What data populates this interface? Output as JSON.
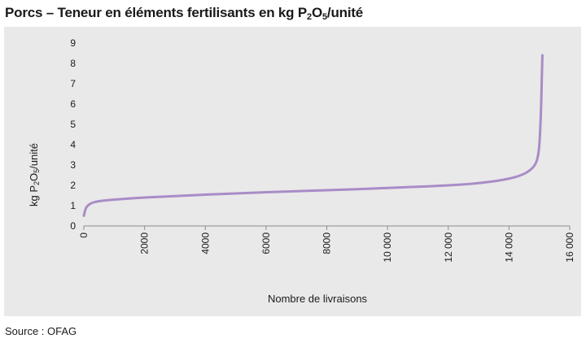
{
  "header": {
    "title_main": "Porcs – Teneur en éléments fertilisants en kg P",
    "title_sub1": "2",
    "title_mid": "O",
    "title_sub2": "5",
    "title_end": "/unité"
  },
  "footer": {
    "source": "Source : OFAG"
  },
  "colors": {
    "panel": "#e9e9e9",
    "line": "#a98cc7",
    "axis": "#8c8c8c"
  },
  "chart_data": {
    "type": "line",
    "title": "Porcs – Teneur en éléments fertilisants en kg P2O5/unité",
    "xlabel": "Nombre de livraisons",
    "ylabel_main": "kg P",
    "ylabel_sub1": "2",
    "ylabel_mid": "O",
    "ylabel_sub2": "5",
    "ylabel_end": "/unité",
    "xlim": [
      0,
      16000
    ],
    "ylim": [
      0,
      9
    ],
    "x_ticks": [
      0,
      2000,
      4000,
      6000,
      8000,
      10000,
      12000,
      14000,
      16000
    ],
    "x_tick_labels": [
      "0",
      "2000",
      "4000",
      "6000",
      "8000",
      "10 000",
      "12 000",
      "14 000",
      "16 000"
    ],
    "y_ticks": [
      0,
      1,
      2,
      3,
      4,
      5,
      6,
      7,
      8,
      9
    ],
    "y_tick_labels": [
      "0",
      "1",
      "2",
      "3",
      "4",
      "5",
      "6",
      "7",
      "8",
      "9"
    ],
    "grid": false,
    "legend": "none",
    "series": [
      {
        "x": [
          0,
          50,
          100,
          200,
          300,
          500,
          800,
          1200,
          2000,
          3000,
          4000,
          5000,
          6000,
          7000,
          8000,
          9000,
          10000,
          11000,
          12000,
          12800,
          13400,
          13900,
          14300,
          14600,
          14800,
          14900,
          14960,
          15000,
          15030,
          15060,
          15080,
          15100
        ],
        "y": [
          0.5,
          0.8,
          0.95,
          1.08,
          1.15,
          1.22,
          1.27,
          1.32,
          1.4,
          1.47,
          1.54,
          1.6,
          1.66,
          1.71,
          1.76,
          1.81,
          1.87,
          1.93,
          2.0,
          2.08,
          2.18,
          2.3,
          2.45,
          2.65,
          2.9,
          3.15,
          3.5,
          4.0,
          4.8,
          6.0,
          7.2,
          8.4
        ]
      }
    ]
  }
}
